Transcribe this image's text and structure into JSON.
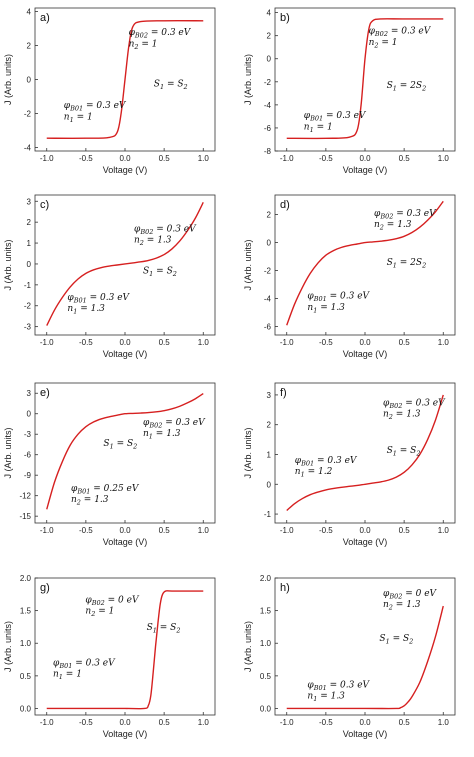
{
  "chart_data": [
    {
      "type": "line",
      "label": "a)",
      "xlabel": "Voltage (V)",
      "ylabel": "J (Arb. units)",
      "xlim": [
        -1.15,
        1.15
      ],
      "ylim": [
        -4.2,
        4.2
      ],
      "xticks": [
        "-1.0",
        "-0.5",
        "0.0",
        "0.5",
        "1.0"
      ],
      "xtick_values": [
        -1,
        -0.5,
        0,
        0.5,
        1
      ],
      "yticks": [
        "-4",
        "-2",
        "0",
        "2",
        "4"
      ],
      "ytick_values": [
        -4,
        -2,
        0,
        2,
        4
      ],
      "x": [
        -1.0,
        -0.5,
        -0.2,
        -0.1,
        -0.05,
        0.0,
        0.05,
        0.1,
        0.2,
        0.5,
        1.0
      ],
      "y": [
        -3.45,
        -3.45,
        -3.4,
        -3.1,
        -2.0,
        0.0,
        2.0,
        3.1,
        3.4,
        3.45,
        3.45
      ],
      "annotations": [
        "φB01 = 0.3 eV",
        "n1 = 1",
        "φB02 = 0.3 eV",
        "n2 = 1",
        "S1 = S2"
      ]
    },
    {
      "type": "line",
      "label": "b)",
      "xlabel": "Voltage (V)",
      "ylabel": "J (Arb. units)",
      "xlim": [
        -1.15,
        1.15
      ],
      "ylim": [
        -8,
        4.4
      ],
      "xticks": [
        "-1.0",
        "-0.5",
        "0.0",
        "0.5",
        "1.0"
      ],
      "xtick_values": [
        -1,
        -0.5,
        0,
        0.5,
        1
      ],
      "yticks": [
        "-8",
        "-6",
        "-4",
        "-2",
        "0",
        "2",
        "4"
      ],
      "ytick_values": [
        -8,
        -6,
        -4,
        -2,
        0,
        2,
        4
      ],
      "x": [
        -1.0,
        -0.5,
        -0.2,
        -0.1,
        -0.05,
        0.0,
        0.05,
        0.1,
        0.2,
        0.5,
        1.0
      ],
      "y": [
        -6.9,
        -6.9,
        -6.8,
        -6.2,
        -4.0,
        0.0,
        2.6,
        3.3,
        3.45,
        3.45,
        3.45
      ],
      "annotations": [
        "φB01 = 0.3 eV",
        "n1 = 1",
        "φB02 = 0.3 eV",
        "n2 = 1",
        "S1 = 2S2"
      ]
    },
    {
      "type": "line",
      "label": "c)",
      "xlabel": "Voltage (V)",
      "ylabel": "J (Arb. units)",
      "xlim": [
        -1.15,
        1.15
      ],
      "ylim": [
        -3.4,
        3.3
      ],
      "xticks": [
        "-1.0",
        "-0.5",
        "0.0",
        "0.5",
        "1.0"
      ],
      "xtick_values": [
        -1,
        -0.5,
        0,
        0.5,
        1
      ],
      "yticks": [
        "-3",
        "-2",
        "-1",
        "0",
        "1",
        "2",
        "3"
      ],
      "ytick_values": [
        -3,
        -2,
        -1,
        0,
        1,
        2,
        3
      ],
      "x": [
        -1.0,
        -0.9,
        -0.8,
        -0.7,
        -0.6,
        -0.5,
        -0.4,
        -0.3,
        -0.2,
        -0.1,
        0.0,
        0.1,
        0.2,
        0.3,
        0.4,
        0.5,
        0.6,
        0.7,
        0.8,
        0.9,
        1.0
      ],
      "y": [
        -2.95,
        -2.2,
        -1.6,
        -1.1,
        -0.72,
        -0.45,
        -0.28,
        -0.17,
        -0.1,
        -0.05,
        0.0,
        0.05,
        0.1,
        0.17,
        0.28,
        0.45,
        0.72,
        1.1,
        1.6,
        2.2,
        2.95
      ],
      "annotations": [
        "φB01 = 0.3 eV",
        "n1 = 1.3",
        "φB02 = 0.3 eV",
        "n2 = 1.3",
        "S1 = S2"
      ]
    },
    {
      "type": "line",
      "label": "d)",
      "xlabel": "Voltage (V)",
      "ylabel": "J (Arb. units)",
      "xlim": [
        -1.15,
        1.15
      ],
      "ylim": [
        -6.6,
        3.4
      ],
      "xticks": [
        "-1.0",
        "-0.5",
        "0.0",
        "0.5",
        "1.0"
      ],
      "xtick_values": [
        -1,
        -0.5,
        0,
        0.5,
        1
      ],
      "yticks": [
        "-6",
        "-4",
        "-2",
        "0",
        "2"
      ],
      "ytick_values": [
        -6,
        -4,
        -2,
        0,
        2
      ],
      "x": [
        -1.0,
        -0.9,
        -0.8,
        -0.7,
        -0.6,
        -0.5,
        -0.4,
        -0.3,
        -0.2,
        -0.1,
        0.0,
        0.1,
        0.2,
        0.3,
        0.4,
        0.5,
        0.6,
        0.7,
        0.8,
        0.9,
        1.0
      ],
      "y": [
        -5.9,
        -4.4,
        -3.2,
        -2.2,
        -1.45,
        -0.9,
        -0.56,
        -0.34,
        -0.2,
        -0.1,
        0.0,
        0.05,
        0.1,
        0.17,
        0.28,
        0.45,
        0.72,
        1.1,
        1.6,
        2.2,
        2.95
      ],
      "annotations": [
        "φB01 = 0.3 eV",
        "n1 = 1.3",
        "φB02 = 0.3 eV",
        "n2 = 1.3",
        "S1 = 2S2"
      ]
    },
    {
      "type": "line",
      "label": "e)",
      "xlabel": "Voltage (V)",
      "ylabel": "J (Arb. units)",
      "xlim": [
        -1.15,
        1.15
      ],
      "ylim": [
        -16,
        4.5
      ],
      "xticks": [
        "-1.0",
        "-0.5",
        "0.0",
        "0.5",
        "1.0"
      ],
      "xtick_values": [
        -1,
        -0.5,
        0,
        0.5,
        1
      ],
      "yticks": [
        "-15",
        "-12",
        "-9",
        "-6",
        "-3",
        "0",
        "3"
      ],
      "ytick_values": [
        -15,
        -12,
        -9,
        -6,
        -3,
        0,
        3
      ],
      "x": [
        -1.0,
        -0.9,
        -0.8,
        -0.7,
        -0.6,
        -0.5,
        -0.4,
        -0.3,
        -0.2,
        -0.1,
        0.0,
        0.1,
        0.2,
        0.3,
        0.4,
        0.5,
        0.6,
        0.7,
        0.8,
        0.9,
        1.0
      ],
      "y": [
        -14.0,
        -10.0,
        -7.0,
        -4.6,
        -3.0,
        -1.9,
        -1.2,
        -0.75,
        -0.45,
        -0.22,
        0.0,
        0.05,
        0.1,
        0.17,
        0.28,
        0.45,
        0.72,
        1.1,
        1.6,
        2.2,
        2.95
      ],
      "annotations": [
        "φB01 = 0.25 eV",
        "n2 = 1.3",
        "φB02 = 0.3 eV",
        "n1 = 1.3",
        "S1 = S2"
      ]
    },
    {
      "type": "line",
      "label": "f)",
      "xlabel": "Voltage (V)",
      "ylabel": "J (Arb. units)",
      "xlim": [
        -1.15,
        1.15
      ],
      "ylim": [
        -1.3,
        3.4
      ],
      "xticks": [
        "-1.0",
        "-0.5",
        "0.0",
        "0.5",
        "1.0"
      ],
      "xtick_values": [
        -1,
        -0.5,
        0,
        0.5,
        1
      ],
      "yticks": [
        "-1",
        "0",
        "1",
        "2",
        "3"
      ],
      "ytick_values": [
        -1,
        0,
        1,
        2,
        3
      ],
      "x": [
        -1.0,
        -0.9,
        -0.8,
        -0.7,
        -0.6,
        -0.5,
        -0.4,
        -0.3,
        -0.2,
        -0.1,
        0.0,
        0.1,
        0.2,
        0.3,
        0.4,
        0.5,
        0.6,
        0.7,
        0.8,
        0.9,
        1.0
      ],
      "y": [
        -0.88,
        -0.65,
        -0.48,
        -0.35,
        -0.26,
        -0.19,
        -0.14,
        -0.1,
        -0.07,
        -0.04,
        0.0,
        0.04,
        0.08,
        0.14,
        0.24,
        0.4,
        0.65,
        1.0,
        1.5,
        2.15,
        3.0
      ],
      "annotations": [
        "φB01 = 0.3 eV",
        "n1 = 1.2",
        "φB02 = 0.3 eV",
        "n2 = 1.3",
        "S1 = S2"
      ]
    },
    {
      "type": "line",
      "label": "g)",
      "xlabel": "Voltage (V)",
      "ylabel": "J (Arb. units)",
      "xlim": [
        -1.15,
        1.15
      ],
      "ylim": [
        -0.1,
        2.0
      ],
      "xticks": [
        "-1.0",
        "-0.5",
        "0.0",
        "0.5",
        "1.0"
      ],
      "xtick_values": [
        -1,
        -0.5,
        0,
        0.5,
        1
      ],
      "yticks": [
        "0.0",
        "0.5",
        "1.0",
        "1.5",
        "2.0"
      ],
      "ytick_values": [
        0,
        0.5,
        1,
        1.5,
        2
      ],
      "x": [
        -1.0,
        0.0,
        0.25,
        0.3,
        0.33,
        0.36,
        0.39,
        0.42,
        0.45,
        0.48,
        0.52,
        0.6,
        1.0
      ],
      "y": [
        0.0,
        0.0,
        0.0,
        0.05,
        0.2,
        0.55,
        0.95,
        1.3,
        1.6,
        1.75,
        1.8,
        1.8,
        1.8
      ],
      "annotations": [
        "φB01 = 0.3 eV",
        "n1 = 1",
        "φB02 = 0 eV",
        "n2 = 1",
        "S1 = S2"
      ]
    },
    {
      "type": "line",
      "label": "h)",
      "xlabel": "Voltage (V)",
      "ylabel": "J (Arb. units)",
      "xlim": [
        -1.15,
        1.15
      ],
      "ylim": [
        -0.1,
        2.0
      ],
      "xticks": [
        "-1.0",
        "-0.5",
        "0.0",
        "0.5",
        "1.0"
      ],
      "xtick_values": [
        -1,
        -0.5,
        0,
        0.5,
        1
      ],
      "yticks": [
        "0.0",
        "0.5",
        "1.0",
        "1.5",
        "2.0"
      ],
      "ytick_values": [
        0,
        0.5,
        1,
        1.5,
        2
      ],
      "x": [
        -1.0,
        0.0,
        0.4,
        0.45,
        0.5,
        0.55,
        0.6,
        0.7,
        0.8,
        0.9,
        1.0
      ],
      "y": [
        0.0,
        0.0,
        0.0,
        0.01,
        0.04,
        0.1,
        0.18,
        0.4,
        0.72,
        1.1,
        1.57
      ],
      "annotations": [
        "φB01 = 0.3 eV",
        "n1 = 1.3",
        "φB02 = 0 eV",
        "n2 = 1.3",
        "S1 = S2"
      ]
    }
  ],
  "colors": {
    "curve": "#d62020",
    "axis": "#333333"
  }
}
